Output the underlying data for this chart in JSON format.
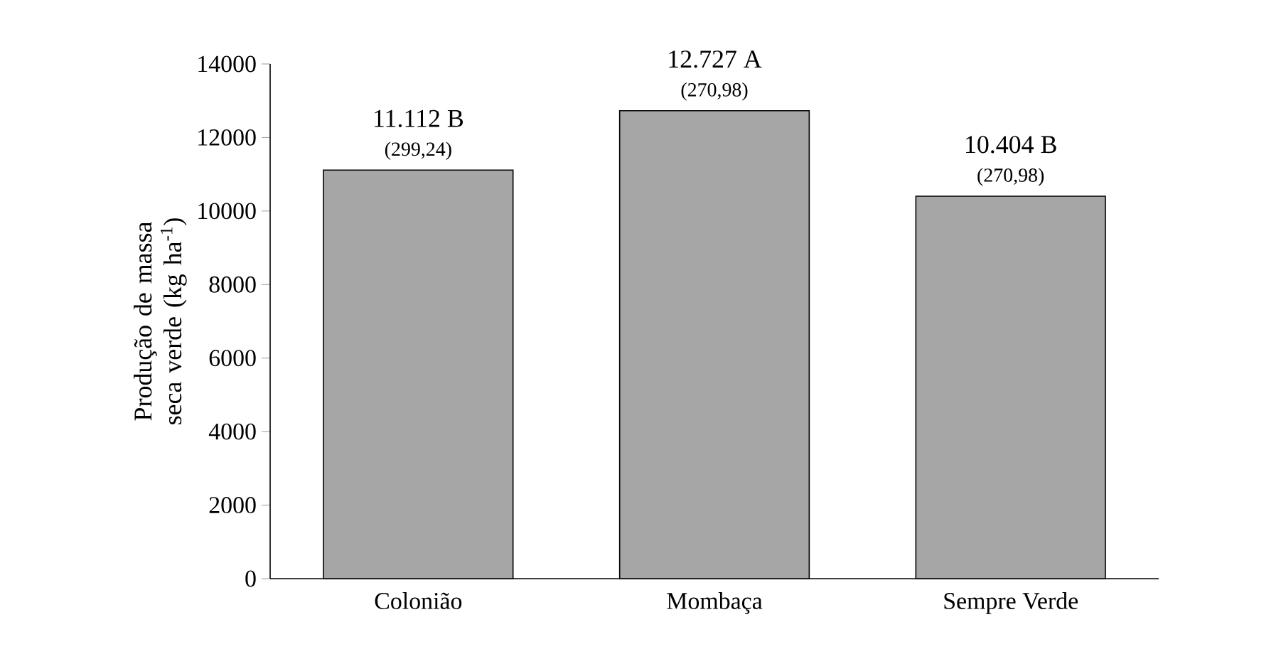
{
  "chart_data": {
    "type": "bar",
    "ylabel": "Produção de massa seca verde (kg ha$^{-1}$)",
    "categories": [
      "Colonião",
      "Mombaça",
      "Sempre Verde"
    ],
    "values": [
      11112,
      12727,
      10404
    ],
    "value_labels": [
      "11.112 B",
      "12.727 A",
      "10.404 B"
    ],
    "color": "#a6a6a6",
    "ylim": [
      0,
      14000
    ],
    "yticks": [
      0,
      2000,
      4000,
      6000,
      8000,
      10000,
      12000,
      14000
    ],
    "annotations": [
      {
        "text": "(299,24)",
        "x": "Colonião",
        "y": 11112
      },
      {
        "text": "(270,98)",
        "x": "Mombaça",
        "y": 12727
      },
      {
        "text": "(270,98)",
        "x": "Sempre Verde",
        "y": 10404
      }
    ]
  }
}
